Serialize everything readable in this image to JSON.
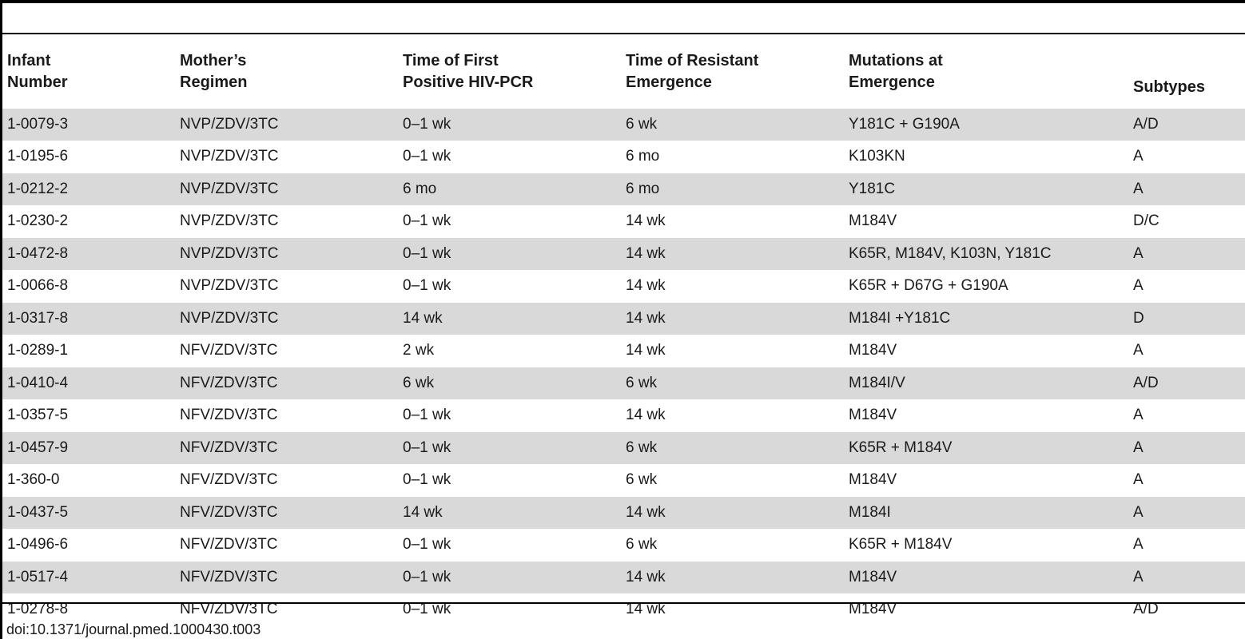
{
  "table": {
    "headers": [
      {
        "line1": "Infant",
        "line2": "Number"
      },
      {
        "line1": "Mother’s",
        "line2": "Regimen"
      },
      {
        "line1": "Time of First",
        "line2": "Positive HIV-PCR"
      },
      {
        "line1": "Time of Resistant",
        "line2": "Emergence"
      },
      {
        "line1": "Mutations at",
        "line2": "Emergence"
      },
      {
        "line1": "",
        "line2": "Subtypes"
      }
    ],
    "rows": [
      [
        "1-0079-3",
        "NVP/ZDV/3TC",
        "0–1 wk",
        "6 wk",
        "Y181C + G190A",
        "A/D"
      ],
      [
        "1-0195-6",
        "NVP/ZDV/3TC",
        "0–1 wk",
        "6 mo",
        "K103KN",
        "A"
      ],
      [
        "1-0212-2",
        "NVP/ZDV/3TC",
        "6 mo",
        "6 mo",
        "Y181C",
        "A"
      ],
      [
        "1-0230-2",
        "NVP/ZDV/3TC",
        "0–1 wk",
        "14 wk",
        "M184V",
        "D/C"
      ],
      [
        "1-0472-8",
        "NVP/ZDV/3TC",
        "0–1 wk",
        "14 wk",
        "K65R, M184V, K103N, Y181C",
        "A"
      ],
      [
        "1-0066-8",
        "NVP/ZDV/3TC",
        "0–1 wk",
        "14 wk",
        "K65R + D67G + G190A",
        "A"
      ],
      [
        "1-0317-8",
        "NVP/ZDV/3TC",
        "14 wk",
        "14 wk",
        "M184I +Y181C",
        "D"
      ],
      [
        "1-0289-1",
        "NFV/ZDV/3TC",
        "2 wk",
        "14 wk",
        "M184V",
        "A"
      ],
      [
        "1-0410-4",
        "NFV/ZDV/3TC",
        "6 wk",
        "6 wk",
        "M184I/V",
        "A/D"
      ],
      [
        "1-0357-5",
        "NFV/ZDV/3TC",
        "0–1 wk",
        "14 wk",
        "M184V",
        "A"
      ],
      [
        "1-0457-9",
        "NFV/ZDV/3TC",
        "0–1 wk",
        "6 wk",
        "K65R + M184V",
        "A"
      ],
      [
        "1-360-0",
        "NFV/ZDV/3TC",
        "0–1 wk",
        "6 wk",
        "M184V",
        "A"
      ],
      [
        "1-0437-5",
        "NFV/ZDV/3TC",
        "14 wk",
        "14 wk",
        "M184I",
        "A"
      ],
      [
        "1-0496-6",
        "NFV/ZDV/3TC",
        "0–1 wk",
        "6 wk",
        "K65R + M184V",
        "A"
      ],
      [
        "1-0517-4",
        "NFV/ZDV/3TC",
        "0–1 wk",
        "14 wk",
        "M184V",
        "A"
      ],
      [
        "1-0278-8",
        "NFV/ZDV/3TC",
        "0–1 wk",
        "14 wk",
        "M184V",
        "A/D"
      ]
    ]
  },
  "caption": "doi:10.1371/journal.pmed.1000430.t003",
  "colors": {
    "stripe": "#d9d9d9",
    "rule": "#000000",
    "text": "#1a1a1a"
  }
}
